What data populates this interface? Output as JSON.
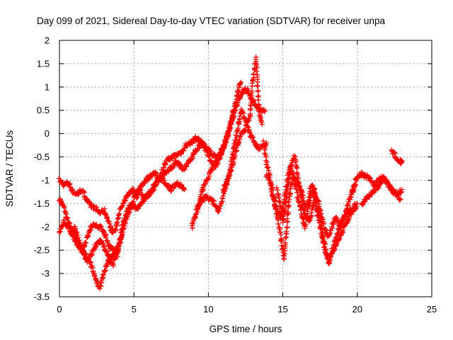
{
  "chart_data": {
    "type": "scatter",
    "title": "Day 099 of 2021, Sidereal Day-to-day VTEC variation (SDTVAR) for receiver unpa",
    "xlabel": "GPS time / hours",
    "ylabel": "SDTVAR / TECUs",
    "xlim": [
      0,
      25
    ],
    "ylim": [
      -3.5,
      2
    ],
    "xticks": [
      "0",
      "5",
      "10",
      "15",
      "20",
      "25"
    ],
    "yticks": [
      "-3.5",
      "-3",
      "-2.5",
      "-2",
      "-1.5",
      "-1",
      "-0.5",
      "0",
      "0.5",
      "1",
      "1.5",
      "2"
    ],
    "grid": true,
    "marker": "+",
    "series": [
      {
        "name": "SDTVAR",
        "color": "#ff0000",
        "tracks": [
          {
            "x": [
              0,
              0.3,
              0.6,
              0.9,
              1.2,
              1.5,
              1.8,
              2.1,
              2.4,
              2.7,
              3.0,
              3.2,
              3.4,
              3.6,
              3.8,
              4.0,
              4.3,
              4.6,
              4.9,
              5.2,
              5.5,
              5.8,
              6.1,
              6.4,
              6.7,
              7.0,
              7.3,
              7.6,
              7.9,
              8.2,
              8.5,
              8.8,
              9.1,
              9.4,
              9.7,
              10.0,
              10.3,
              10.6,
              10.9,
              11.2,
              11.5,
              11.8,
              12.0,
              12.2
            ],
            "y": [
              -1.0,
              -1.1,
              -1.05,
              -1.25,
              -1.3,
              -1.2,
              -1.4,
              -1.55,
              -1.6,
              -1.7,
              -1.65,
              -1.8,
              -2.0,
              -2.1,
              -2.05,
              -1.7,
              -1.5,
              -1.3,
              -1.2,
              -1.35,
              -1.1,
              -1.0,
              -0.9,
              -0.85,
              -1.0,
              -0.7,
              -0.55,
              -0.5,
              -0.45,
              -0.4,
              -0.25,
              -0.2,
              -0.1,
              -0.15,
              -0.25,
              -0.35,
              -0.45,
              -0.5,
              -0.35,
              -0.15,
              0.2,
              0.6,
              0.95,
              1.1
            ]
          },
          {
            "x": [
              0,
              0.3,
              0.6,
              0.9,
              1.2,
              1.5,
              1.8,
              2.1,
              2.4,
              2.7,
              3.0,
              3.3,
              3.6,
              3.9,
              4.2,
              4.5,
              4.8,
              5.1,
              5.4,
              5.7,
              6.0,
              6.3,
              6.6,
              6.9,
              7.2,
              7.5,
              7.8,
              8.1,
              8.4,
              8.7,
              9.0,
              9.3,
              9.6,
              9.9,
              10.2,
              10.5,
              10.8,
              11.1,
              11.4,
              11.7
            ],
            "y": [
              -2.1,
              -1.9,
              -2.0,
              -2.2,
              -2.4,
              -2.5,
              -2.3,
              -2.0,
              -1.95,
              -2.0,
              -2.1,
              -2.4,
              -2.5,
              -2.6,
              -2.0,
              -1.7,
              -1.5,
              -1.6,
              -1.55,
              -1.4,
              -1.3,
              -1.2,
              -1.0,
              -0.9,
              -0.8,
              -0.75,
              -0.6,
              -0.7,
              -0.75,
              -0.6,
              -0.45,
              -0.3,
              -0.2,
              -0.4,
              -0.6,
              -0.7,
              -0.5,
              -0.2,
              0.1,
              0.5
            ]
          },
          {
            "x": [
              0,
              0.3,
              0.6,
              0.9,
              1.2,
              1.5,
              1.8,
              2.1,
              2.4,
              2.7,
              3.0,
              3.3,
              3.6,
              3.9,
              4.2,
              4.5,
              4.8,
              5.1,
              5.4,
              5.7,
              6.0,
              6.3,
              6.6,
              6.9,
              7.2,
              7.5,
              7.8,
              8.1,
              8.4
            ],
            "y": [
              -1.4,
              -1.6,
              -1.9,
              -2.1,
              -2.3,
              -2.5,
              -2.7,
              -2.8,
              -3.1,
              -3.3,
              -3.0,
              -2.7,
              -2.8,
              -2.5,
              -2.2,
              -1.8,
              -1.6,
              -1.3,
              -1.2,
              -1.4,
              -1.3,
              -1.15,
              -1.0,
              -0.95,
              -1.1,
              -1.2,
              -1.05,
              -1.1,
              -1.2
            ]
          },
          {
            "x": [
              1.0,
              1.3,
              1.6,
              1.9,
              2.2,
              2.5,
              2.8,
              3.1,
              3.4,
              3.7,
              4.0
            ],
            "y": [
              -2.0,
              -2.3,
              -2.55,
              -2.7,
              -2.55,
              -2.35,
              -2.3,
              -2.5,
              -2.7,
              -2.55,
              -2.4
            ]
          },
          {
            "x": [
              8.9,
              9.1,
              9.3,
              9.6,
              9.9,
              10.2,
              10.5,
              10.8,
              11.1,
              11.4,
              11.7,
              12.0,
              12.3,
              12.6,
              12.9,
              13.2,
              13.5,
              13.8
            ],
            "y": [
              -2.0,
              -1.8,
              -1.6,
              -1.2,
              -1.0,
              -0.8,
              -0.6,
              -0.5,
              -0.2,
              0.1,
              0.4,
              0.7,
              0.9,
              0.95,
              0.75,
              0.6,
              0.5,
              0.5
            ]
          },
          {
            "x": [
              9.2,
              9.5,
              9.8,
              10.1,
              10.4,
              10.7,
              11.0,
              11.3,
              11.6,
              11.9,
              12.2,
              12.5,
              12.8,
              13.1,
              13.4,
              13.7,
              13.9
            ],
            "y": [
              -1.6,
              -1.45,
              -1.35,
              -1.4,
              -1.5,
              -1.65,
              -1.3,
              -1.0,
              -0.5,
              0.0,
              0.5,
              0.3,
              0.0,
              -0.2,
              -0.3,
              -0.3,
              -0.2
            ]
          },
          {
            "x": [
              11.0,
              11.3,
              11.6,
              11.9,
              12.2,
              12.5,
              12.8,
              13.0,
              13.2,
              13.4,
              13.6
            ],
            "y": [
              -1.2,
              -1.0,
              -0.7,
              -0.3,
              0.0,
              0.1,
              0.4,
              1.2,
              1.6,
              0.5,
              0.2
            ]
          },
          {
            "x": [
              13.7,
              13.9,
              14.1,
              14.3,
              14.5,
              14.7,
              14.9,
              15.1,
              15.3,
              15.5,
              15.7,
              15.9,
              16.1,
              16.3,
              16.5,
              16.7,
              16.9,
              17.1,
              17.3,
              17.5,
              17.7,
              17.9,
              18.1,
              18.3,
              18.5,
              18.8,
              19.1,
              19.4,
              19.7,
              20.0
            ],
            "y": [
              -0.2,
              -0.6,
              -0.9,
              -1.2,
              -1.5,
              -1.7,
              -1.8,
              -1.4,
              -1.0,
              -0.7,
              -0.9,
              -1.2,
              -1.5,
              -1.8,
              -2.0,
              -1.6,
              -1.3,
              -1.2,
              -1.6,
              -1.8,
              -2.2,
              -2.5,
              -2.8,
              -2.5,
              -2.3,
              -2.0,
              -1.8,
              -1.7,
              -1.6,
              -1.5
            ]
          },
          {
            "x": [
              13.9,
              14.1,
              14.3,
              14.5,
              14.7,
              14.9,
              15.1,
              15.3,
              15.5,
              15.7,
              15.9,
              16.1,
              16.3,
              16.5,
              16.7,
              16.9,
              17.1,
              17.3,
              17.5,
              17.7,
              17.9,
              18.1,
              18.4,
              18.7,
              19.0,
              19.3,
              19.6,
              19.9
            ],
            "y": [
              -0.9,
              -1.0,
              -1.3,
              -1.6,
              -1.9,
              -2.3,
              -2.7,
              -1.8,
              -1.2,
              -0.9,
              -1.0,
              -1.1,
              -1.3,
              -1.6,
              -1.5,
              -1.1,
              -1.2,
              -1.7,
              -2.0,
              -2.3,
              -2.6,
              -2.7,
              -2.5,
              -2.3,
              -2.1,
              -1.9,
              -1.7,
              -1.6
            ]
          },
          {
            "x": [
              14.6,
              14.8,
              15.0,
              15.2,
              15.4,
              15.6,
              15.8,
              16.0,
              16.2,
              16.4,
              16.6,
              16.8,
              17.0,
              17.2,
              17.4,
              17.6,
              17.8,
              18.0,
              18.2,
              18.4,
              18.6,
              18.8,
              19.0,
              19.3,
              19.6,
              19.9
            ],
            "y": [
              -1.2,
              -1.5,
              -1.9,
              -1.5,
              -1.0,
              -0.6,
              -0.5,
              -0.9,
              -1.3,
              -1.7,
              -1.8,
              -1.9,
              -1.6,
              -1.3,
              -1.5,
              -1.8,
              -2.0,
              -2.2,
              -2.1,
              -1.9,
              -1.8,
              -2.0,
              -1.9,
              -1.6,
              -1.3,
              -1.1
            ]
          },
          {
            "x": [
              19.6,
              19.9,
              20.2,
              20.5,
              20.8,
              21.1,
              21.4,
              21.7,
              22.0,
              22.3,
              22.6,
              22.9
            ],
            "y": [
              -1.3,
              -1.0,
              -0.85,
              -0.9,
              -0.95,
              -1.1,
              -1.0,
              -0.95,
              -1.05,
              -1.2,
              -1.3,
              -1.4
            ]
          },
          {
            "x": [
              20.3,
              20.6,
              20.9,
              21.2,
              21.5,
              21.8,
              22.1,
              22.4,
              22.7,
              23.0
            ],
            "y": [
              -1.5,
              -1.4,
              -1.3,
              -1.2,
              -1.1,
              -0.95,
              -1.1,
              -1.25,
              -1.3,
              -1.2
            ]
          },
          {
            "x": [
              22.3,
              22.5,
              22.7,
              22.9,
              23.0
            ],
            "y": [
              -0.35,
              -0.45,
              -0.55,
              -0.6,
              -0.6
            ]
          }
        ]
      }
    ]
  }
}
